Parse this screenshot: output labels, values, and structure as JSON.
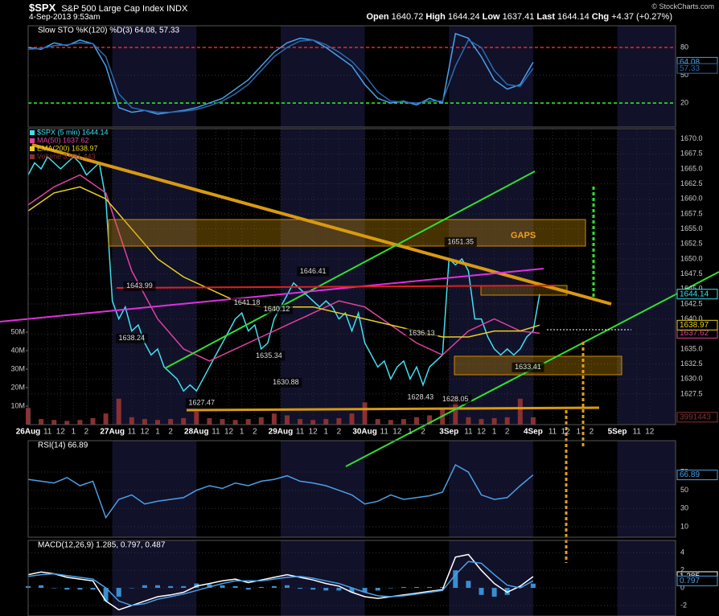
{
  "header": {
    "symbol": "$SPX",
    "name": "S&P 500 Large Cap Index",
    "exchange": "INDX",
    "datetime": "4-Sep-2013 9:53am",
    "quote": [
      {
        "label": "Open",
        "value": 1640.72
      },
      {
        "label": "High",
        "value": 1644.24
      },
      {
        "label": "Low",
        "value": 1637.41
      },
      {
        "label": "Last",
        "value": 1644.14
      }
    ],
    "chg_label": "Chg",
    "chg": "+4.37 (+0.27%)",
    "copyright": "© StockCharts.com",
    "gaps_label": "GAPS"
  },
  "chart_data": [
    {
      "type": "line",
      "title": "Slow STO %K(120) %D(3) 64.08, 57.33",
      "xlim": [
        0,
        50
      ],
      "ylim": [
        -6,
        103.5
      ],
      "yticks": [
        20,
        50,
        80
      ],
      "ref_lines": [
        {
          "value": 80,
          "color": "#ff2020"
        },
        {
          "value": 20,
          "color": "#20ff20"
        }
      ],
      "x": [
        0,
        1,
        2,
        3,
        4,
        5,
        6,
        7,
        8,
        9,
        10,
        11,
        12,
        13,
        14,
        15,
        16,
        17,
        18,
        19,
        20,
        21,
        22,
        23,
        24,
        25,
        26,
        27,
        28,
        29,
        30,
        31,
        32,
        33,
        34,
        35,
        36,
        37,
        38,
        39
      ],
      "series": [
        {
          "name": "%K(120)",
          "color": "#4aa0e8",
          "last_label": true,
          "values": [
            80,
            78,
            85,
            82,
            88,
            84,
            60,
            15,
            10,
            12,
            8,
            10,
            12,
            15,
            20,
            25,
            35,
            45,
            60,
            75,
            85,
            90,
            88,
            80,
            70,
            60,
            40,
            25,
            20,
            22,
            18,
            25,
            20,
            95,
            90,
            70,
            45,
            35,
            40,
            64.08
          ]
        },
        {
          "name": "%D(3)",
          "color": "#2a6ab0",
          "last_label": true,
          "values": [
            78,
            79,
            82,
            83,
            85,
            84,
            70,
            30,
            15,
            12,
            10,
            10,
            11,
            13,
            17,
            22,
            30,
            40,
            55,
            70,
            80,
            87,
            88,
            83,
            75,
            65,
            50,
            32,
            22,
            21,
            20,
            22,
            22,
            60,
            88,
            80,
            55,
            40,
            38,
            57.33
          ]
        }
      ]
    },
    {
      "type": "line",
      "xlim": [
        0,
        50
      ],
      "ylim": [
        1622.4,
        1671.7
      ],
      "grid": true,
      "yticks": [
        1627.5,
        {
          "value": 1630,
          "label": "1630.0"
        },
        1632.5,
        {
          "value": 1635,
          "label": "1635.0"
        },
        1637.5,
        {
          "value": 1640,
          "label": "1640.0"
        },
        1642.5,
        {
          "value": 1645,
          "label": "1645.0"
        },
        1647.5,
        {
          "value": 1650,
          "label": "1650.0"
        },
        1652.5,
        {
          "value": 1655,
          "label": "1655.0"
        },
        1657.5,
        {
          "value": 1660,
          "label": "1660.0"
        },
        1662.5,
        {
          "value": 1665,
          "label": "1665.0"
        },
        1667.5,
        {
          "value": 1670,
          "label": "1670.0"
        }
      ],
      "y2lim": [
        0,
        160000000
      ],
      "y2ticks": [
        {
          "value": 10000000,
          "label": "10M"
        },
        {
          "value": 20000000,
          "label": "20M"
        },
        {
          "value": 30000000,
          "label": "30M"
        },
        {
          "value": 40000000,
          "label": "40M"
        },
        {
          "value": 50000000,
          "label": "50M"
        }
      ],
      "xticks": [
        {
          "value": 0,
          "label": "26Aug"
        },
        {
          "value": 1.5,
          "label": "11"
        },
        {
          "value": 2.5,
          "label": "12"
        },
        {
          "value": 3.5,
          "label": "1"
        },
        {
          "value": 4.5,
          "label": "2"
        },
        {
          "value": 6.5,
          "label": "27Aug"
        },
        {
          "value": 8,
          "label": "11"
        },
        {
          "value": 9,
          "label": "12"
        },
        {
          "value": 10,
          "label": "1"
        },
        {
          "value": 11,
          "label": "2"
        },
        {
          "value": 13,
          "label": "28Aug"
        },
        {
          "value": 14.5,
          "label": "11"
        },
        {
          "value": 15.5,
          "label": "12"
        },
        {
          "value": 16.5,
          "label": "1"
        },
        {
          "value": 17.5,
          "label": "2"
        },
        {
          "value": 19.5,
          "label": "29Aug"
        },
        {
          "value": 21,
          "label": "11"
        },
        {
          "value": 22,
          "label": "12"
        },
        {
          "value": 23,
          "label": "1"
        },
        {
          "value": 24,
          "label": "2"
        },
        {
          "value": 26,
          "label": "30Aug"
        },
        {
          "value": 27.5,
          "label": "11"
        },
        {
          "value": 28.5,
          "label": "12"
        },
        {
          "value": 29.5,
          "label": "1"
        },
        {
          "value": 30.5,
          "label": "2"
        },
        {
          "value": 32.5,
          "label": "3Sep"
        },
        {
          "value": 34,
          "label": "11"
        },
        {
          "value": 35,
          "label": "12"
        },
        {
          "value": 36,
          "label": "1"
        },
        {
          "value": 37,
          "label": "2"
        },
        {
          "value": 39,
          "label": "4Sep"
        },
        {
          "value": 40.5,
          "label": "11"
        },
        {
          "value": 41.5,
          "label": "12"
        },
        {
          "value": 42.5,
          "label": "1"
        },
        {
          "value": 43.5,
          "label": "2"
        },
        {
          "value": 45.5,
          "label": "5Sep"
        },
        {
          "value": 47,
          "label": "11"
        },
        {
          "value": 48,
          "label": "12"
        }
      ],
      "x": [
        0,
        0.5,
        1,
        1.5,
        2,
        2.5,
        3,
        3.5,
        4,
        4.5,
        5,
        5.5,
        6,
        6.5,
        7,
        7.5,
        8,
        8.5,
        9,
        9.5,
        10,
        10.5,
        11,
        11.5,
        12,
        12.5,
        13,
        13.5,
        14,
        14.5,
        15,
        15.5,
        16,
        16.5,
        17,
        17.5,
        18,
        18.5,
        19,
        19.5,
        20,
        20.5,
        21,
        21.5,
        22,
        22.5,
        23,
        23.5,
        24,
        24.5,
        25,
        25.5,
        26,
        26.5,
        27,
        27.5,
        28,
        28.5,
        29,
        29.5,
        30,
        30.5,
        31,
        31.5,
        32,
        32.5,
        33,
        33.5,
        34,
        34.5,
        35,
        35.5,
        36,
        36.5,
        37,
        37.5,
        38,
        38.5,
        39,
        39.5
      ],
      "series": [
        {
          "name": "$SPX (5 min) 1644.14",
          "color": "#40e0f0",
          "last_label": true,
          "values": [
            1664,
            1666,
            1665,
            1667,
            1666,
            1665,
            1666,
            1667,
            1666,
            1664,
            1665,
            1666,
            1660,
            1643,
            1640,
            1642,
            1638,
            1639,
            1636,
            1634,
            1635,
            1632,
            1631,
            1630,
            1628,
            1629,
            1628,
            1630,
            1632,
            1634,
            1636,
            1638,
            1640,
            1641,
            1638,
            1639,
            1635,
            1636,
            1640,
            1642,
            1644,
            1646,
            1645,
            1644,
            1643,
            1642,
            1643,
            1642,
            1640,
            1641,
            1638,
            1641,
            1636,
            1634,
            1632,
            1633,
            1630,
            1632,
            1633,
            1630,
            1632,
            1629,
            1632,
            1633,
            1634,
            1650,
            1649,
            1650,
            1648,
            1640,
            1640,
            1637,
            1635,
            1634,
            1635,
            1634,
            1635,
            1637,
            1638,
            1644.14
          ]
        },
        {
          "name": "MA(50) 1637.62",
          "color": "#e040a0",
          "last_label": true,
          "x": [
            0,
            2,
            4,
            6,
            8,
            10,
            12,
            14,
            16,
            18,
            20,
            22,
            24,
            26,
            28,
            30,
            32,
            34,
            36,
            38,
            39.5
          ],
          "values": [
            1659,
            1662,
            1664,
            1661,
            1648,
            1640,
            1635,
            1633,
            1635,
            1637,
            1639,
            1641,
            1643,
            1642,
            1639,
            1636,
            1634,
            1638,
            1640,
            1638,
            1637.62
          ]
        },
        {
          "name": "EMA(200) 1638.97",
          "color": "#e8d020",
          "last_label": true,
          "x": [
            0,
            2,
            4,
            6,
            8,
            10,
            12,
            14,
            16,
            18,
            20,
            22,
            24,
            26,
            28,
            30,
            32,
            34,
            36,
            38,
            39.5
          ],
          "values": [
            1658,
            1661,
            1662,
            1660,
            1655,
            1650,
            1647,
            1645,
            1643,
            1642,
            1642,
            1642,
            1641,
            1640,
            1639,
            1638,
            1637,
            1637,
            1638,
            1638,
            1638.97
          ]
        },
        {
          "name": "Volume 3,991,443",
          "type": "bar",
          "axis": "y2",
          "color": "#8a3030",
          "last_label": true,
          "x": [
            0,
            1,
            2,
            3,
            4,
            5,
            6,
            7,
            8,
            9,
            10,
            11,
            12,
            13,
            14,
            15,
            16,
            17,
            18,
            19,
            20,
            21,
            22,
            23,
            24,
            25,
            26,
            27,
            28,
            29,
            30,
            31,
            32,
            33,
            34,
            35,
            36,
            37,
            38,
            39
          ],
          "values": [
            9000000,
            3000000,
            2500000,
            2000000,
            2500000,
            3500000,
            6000000,
            14000000,
            4000000,
            3000000,
            2500000,
            3000000,
            3500000,
            7000000,
            3500000,
            3000000,
            2500000,
            3000000,
            4000000,
            6000000,
            5000000,
            3000000,
            2500000,
            3000000,
            3500000,
            6000000,
            12000000,
            3000000,
            2500000,
            3000000,
            4000000,
            5000000,
            9000000,
            15000000,
            4000000,
            3000000,
            3500000,
            4000000,
            14000000,
            3991443
          ]
        }
      ],
      "annotations": [
        {
          "x": 8.6,
          "value": 1643.99,
          "position": "above"
        },
        {
          "x": 8.0,
          "value": 1638.24,
          "position": "below"
        },
        {
          "x": 13.4,
          "value": 1627.47,
          "position": "below"
        },
        {
          "x": 16.9,
          "value": 1641.18,
          "position": "above"
        },
        {
          "x": 19.2,
          "value": 1640.12,
          "position": "above"
        },
        {
          "x": 18.6,
          "value": 1635.34,
          "position": "below"
        },
        {
          "x": 19.9,
          "value": 1630.88,
          "position": "below"
        },
        {
          "x": 22.0,
          "value": 1646.41,
          "position": "above"
        },
        {
          "x": 30.4,
          "value": 1636.13,
          "position": "above"
        },
        {
          "x": 30.3,
          "value": 1628.43,
          "position": "below"
        },
        {
          "x": 33.0,
          "value": 1628.05,
          "position": "below"
        },
        {
          "x": 33.4,
          "value": 1651.35,
          "position": "above"
        },
        {
          "x": 38.6,
          "value": 1633.41,
          "position": "below"
        }
      ]
    },
    {
      "type": "line",
      "title": "RSI(14) 66.89",
      "xlim": [
        0,
        50
      ],
      "ylim": [
        -1.5,
        104.5
      ],
      "yticks": [
        10,
        30,
        50,
        70
      ],
      "x": [
        0,
        1,
        2,
        3,
        4,
        5,
        6,
        7,
        8,
        9,
        10,
        11,
        12,
        13,
        14,
        15,
        16,
        17,
        18,
        19,
        20,
        21,
        22,
        23,
        24,
        25,
        26,
        27,
        28,
        29,
        30,
        31,
        32,
        33,
        34,
        35,
        36,
        37,
        38,
        39
      ],
      "series": [
        {
          "name": "RSI(14)",
          "color": "#4aa0e8",
          "last_label": true,
          "values": [
            62,
            60,
            58,
            64,
            55,
            60,
            20,
            40,
            45,
            35,
            38,
            40,
            42,
            50,
            55,
            52,
            58,
            55,
            60,
            62,
            66,
            60,
            58,
            55,
            50,
            45,
            35,
            38,
            45,
            40,
            42,
            44,
            48,
            78,
            70,
            45,
            40,
            42,
            55,
            66.89
          ]
        }
      ]
    },
    {
      "type": "line",
      "title": "MACD(12,26,9) 1.285, 0.797, 0.487",
      "xlim": [
        0,
        50
      ],
      "ylim": [
        -3.2,
        5.4
      ],
      "yticks": [
        -2,
        0,
        2,
        4
      ],
      "x": [
        0,
        1,
        2,
        3,
        4,
        5,
        6,
        7,
        8,
        9,
        10,
        11,
        12,
        13,
        14,
        15,
        16,
        17,
        18,
        19,
        20,
        21,
        22,
        23,
        24,
        25,
        26,
        27,
        28,
        29,
        30,
        31,
        32,
        33,
        34,
        35,
        36,
        37,
        38,
        39
      ],
      "series": [
        {
          "name": "Histogram",
          "type": "bar",
          "color": "#3a8ed0",
          "values": [
            0.2,
            0.3,
            0,
            -0.2,
            -0.2,
            -0.2,
            -1.5,
            -1.0,
            0,
            0.3,
            0.3,
            0.2,
            0.2,
            0.5,
            0.4,
            0.3,
            0.2,
            -0.2,
            0.1,
            0.2,
            0.3,
            -0.1,
            -0.2,
            -0.3,
            -0.3,
            -0.5,
            -0.5,
            -0.3,
            0,
            0.1,
            0.1,
            0.1,
            0.1,
            2.0,
            0.8,
            -0.8,
            -1.0,
            -0.8,
            0.2,
            0.487
          ]
        },
        {
          "name": "MACD",
          "color": "#ffffff",
          "last_label": true,
          "values": [
            1.5,
            1.8,
            1.6,
            1.2,
            1.0,
            0.8,
            -1.5,
            -2.5,
            -2.0,
            -1.5,
            -1.0,
            -0.8,
            -0.5,
            0.2,
            0.5,
            0.8,
            1.0,
            0.6,
            0.9,
            1.2,
            1.5,
            1.2,
            0.9,
            0.5,
            0.2,
            -0.5,
            -1.0,
            -1.2,
            -1.0,
            -0.8,
            -0.6,
            -0.4,
            -0.2,
            3.5,
            3.8,
            2.0,
            0.5,
            -0.5,
            0.2,
            1.285
          ]
        },
        {
          "name": "Signal",
          "color": "#4aa0e8",
          "last_label": true,
          "values": [
            1.3,
            1.5,
            1.6,
            1.4,
            1.2,
            1.0,
            0.0,
            -1.5,
            -2.0,
            -1.8,
            -1.3,
            -1.0,
            -0.7,
            -0.3,
            0.1,
            0.5,
            0.8,
            0.8,
            0.8,
            1.0,
            1.2,
            1.3,
            1.1,
            0.8,
            0.5,
            0.0,
            -0.5,
            -0.9,
            -1.0,
            -0.9,
            -0.7,
            -0.5,
            -0.3,
            1.5,
            3.0,
            2.8,
            1.5,
            0.3,
            0.0,
            0.797
          ]
        }
      ]
    }
  ]
}
